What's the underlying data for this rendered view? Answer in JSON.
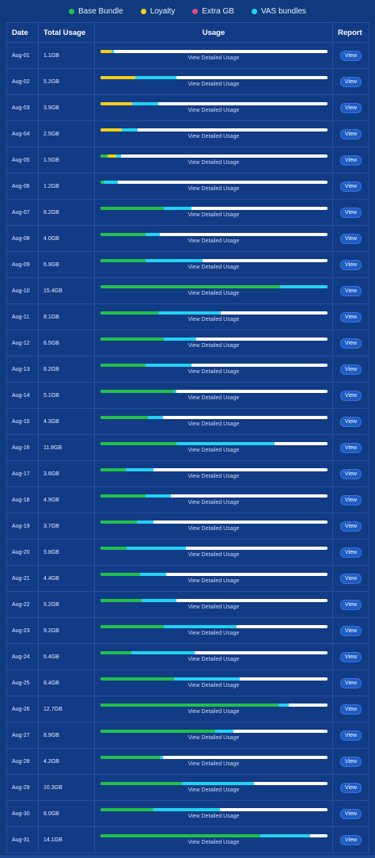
{
  "legend": [
    {
      "label": "Base Bundle",
      "color": "#22c04a"
    },
    {
      "label": "Loyalty",
      "color": "#f2cf17"
    },
    {
      "label": "Extra GB",
      "color": "#e44c7a"
    },
    {
      "label": "VAS bundles",
      "color": "#23d3f2"
    }
  ],
  "headers": {
    "date": "Date",
    "total": "Total Usage",
    "usage": "Usage",
    "report": "Report"
  },
  "detail_label": "View Detailed Usage",
  "view_label": "View",
  "colors": {
    "base": "#22c04a",
    "loyalty": "#f2cf17",
    "extra": "#e44c7a",
    "vas": "#23d3f2",
    "track": "#ffffff"
  },
  "rows": [
    {
      "date": "Aug-01",
      "total": "1.1GB",
      "base": 0.0,
      "loyalty": 0.05,
      "extra": 0.0,
      "vas": 0.01
    },
    {
      "date": "Aug-02",
      "total": "5.2GB",
      "base": 0.0,
      "loyalty": 0.155,
      "extra": 0.0,
      "vas": 0.18
    },
    {
      "date": "Aug-03",
      "total": "3.9GB",
      "base": 0.0,
      "loyalty": 0.14,
      "extra": 0.0,
      "vas": 0.115
    },
    {
      "date": "Aug-04",
      "total": "2.5GB",
      "base": 0.0,
      "loyalty": 0.095,
      "extra": 0.0,
      "vas": 0.07
    },
    {
      "date": "Aug-05",
      "total": "1.5GB",
      "base": 0.03,
      "loyalty": 0.04,
      "extra": 0.0,
      "vas": 0.02
    },
    {
      "date": "Aug-06",
      "total": "1.2GB",
      "base": 0.015,
      "loyalty": 0.0,
      "extra": 0.0,
      "vas": 0.06
    },
    {
      "date": "Aug-07",
      "total": "6.2GB",
      "base": 0.28,
      "loyalty": 0.0,
      "extra": 0.0,
      "vas": 0.12
    },
    {
      "date": "Aug-08",
      "total": "4.0GB",
      "base": 0.2,
      "loyalty": 0.0,
      "extra": 0.0,
      "vas": 0.06
    },
    {
      "date": "Aug-09",
      "total": "6.9GB",
      "base": 0.2,
      "loyalty": 0.0,
      "extra": 0.0,
      "vas": 0.25
    },
    {
      "date": "Aug-10",
      "total": "15.4GB",
      "base": 0.79,
      "loyalty": 0.0,
      "extra": 0.0,
      "vas": 0.21
    },
    {
      "date": "Aug-11",
      "total": "8.1GB",
      "base": 0.255,
      "loyalty": 0.0,
      "extra": 0.0,
      "vas": 0.275
    },
    {
      "date": "Aug-12",
      "total": "6.5GB",
      "base": 0.28,
      "loyalty": 0.0,
      "extra": 0.0,
      "vas": 0.14
    },
    {
      "date": "Aug-13",
      "total": "6.2GB",
      "base": 0.2,
      "loyalty": 0.0,
      "extra": 0.0,
      "vas": 0.2
    },
    {
      "date": "Aug-14",
      "total": "5.1GB",
      "base": 0.325,
      "loyalty": 0.0,
      "extra": 0.0,
      "vas": 0.01
    },
    {
      "date": "Aug-15",
      "total": "4.3GB",
      "base": 0.21,
      "loyalty": 0.0,
      "extra": 0.0,
      "vas": 0.065
    },
    {
      "date": "Aug-16",
      "total": "11.8GB",
      "base": 0.335,
      "loyalty": 0.0,
      "extra": 0.0,
      "vas": 0.43
    },
    {
      "date": "Aug-17",
      "total": "3.6GB",
      "base": 0.11,
      "loyalty": 0.0,
      "extra": 0.0,
      "vas": 0.125
    },
    {
      "date": "Aug-18",
      "total": "4.9GB",
      "base": 0.2,
      "loyalty": 0.0,
      "extra": 0.0,
      "vas": 0.11
    },
    {
      "date": "Aug-19",
      "total": "3.7GB",
      "base": 0.16,
      "loyalty": 0.0,
      "extra": 0.0,
      "vas": 0.075
    },
    {
      "date": "Aug-20",
      "total": "5.8GB",
      "base": 0.115,
      "loyalty": 0.0,
      "extra": 0.0,
      "vas": 0.26
    },
    {
      "date": "Aug-21",
      "total": "4.4GB",
      "base": 0.175,
      "loyalty": 0.0,
      "extra": 0.0,
      "vas": 0.115
    },
    {
      "date": "Aug-22",
      "total": "5.2GB",
      "base": 0.18,
      "loyalty": 0.0,
      "extra": 0.0,
      "vas": 0.155
    },
    {
      "date": "Aug-23",
      "total": "9.2GB",
      "base": 0.28,
      "loyalty": 0.0,
      "extra": 0.0,
      "vas": 0.32
    },
    {
      "date": "Aug-24",
      "total": "6.4GB",
      "base": 0.135,
      "loyalty": 0.0,
      "extra": 0.0,
      "vas": 0.28
    },
    {
      "date": "Aug-25",
      "total": "8.4GB",
      "base": 0.325,
      "loyalty": 0.0,
      "extra": 0.0,
      "vas": 0.29
    },
    {
      "date": "Aug-26",
      "total": "12.7GB",
      "base": 0.785,
      "loyalty": 0.0,
      "extra": 0.0,
      "vas": 0.045
    },
    {
      "date": "Aug-27",
      "total": "8.9GB",
      "base": 0.505,
      "loyalty": 0.0,
      "extra": 0.0,
      "vas": 0.08
    },
    {
      "date": "Aug-28",
      "total": "4.2GB",
      "base": 0.26,
      "loyalty": 0.0,
      "extra": 0.0,
      "vas": 0.015
    },
    {
      "date": "Aug-29",
      "total": "10.3GB",
      "base": 0.36,
      "loyalty": 0.0,
      "extra": 0.0,
      "vas": 0.315
    },
    {
      "date": "Aug-30",
      "total": "8.0GB",
      "base": 0.235,
      "loyalty": 0.0,
      "extra": 0.0,
      "vas": 0.29
    },
    {
      "date": "Aug-31",
      "total": "14.1GB",
      "base": 0.705,
      "loyalty": 0.0,
      "extra": 0.0,
      "vas": 0.22
    }
  ]
}
